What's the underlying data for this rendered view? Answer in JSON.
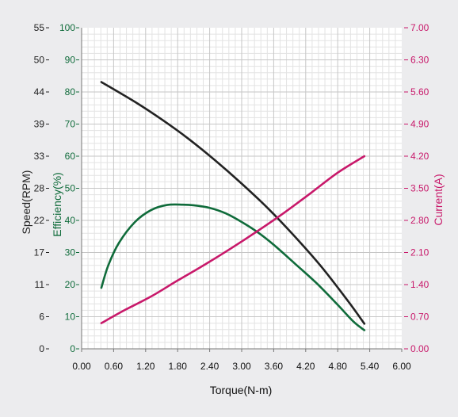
{
  "chart_data": {
    "type": "line",
    "xlabel": "Torque(N-m)",
    "x_ticks": [
      "0.00",
      "0.60",
      "1.20",
      "1.80",
      "2.40",
      "3.00",
      "3.60",
      "4.20",
      "4.80",
      "5.40",
      "6.00"
    ],
    "xlim": [
      0,
      6
    ],
    "grid": true,
    "axes": {
      "speed": {
        "label": "Speed(RPM)",
        "side": "left-outer",
        "color": "#222222",
        "ylim": [
          0,
          55
        ],
        "ticks": [
          "55",
          "50",
          "44",
          "39",
          "33",
          "28",
          "22",
          "17",
          "11",
          "6",
          "0"
        ]
      },
      "efficiency": {
        "label": "Efficiency(%)",
        "side": "left-inner",
        "color": "#0f6b3a",
        "ylim": [
          0,
          100
        ],
        "ticks": [
          "100",
          "90",
          "80",
          "70",
          "60",
          "50",
          "40",
          "30",
          "20",
          "10",
          "0"
        ]
      },
      "current": {
        "label": "Current(A)",
        "side": "right",
        "color": "#c8186a",
        "ylim": [
          0,
          7
        ],
        "ticks": [
          "7.00",
          "6.30",
          "5.60",
          "4.90",
          "4.20",
          "3.50",
          "2.80",
          "2.10",
          "1.40",
          "0.70",
          "0.00"
        ]
      }
    },
    "series": [
      {
        "axis": "speed",
        "color": "#222222",
        "x": [
          0.37,
          1.0,
          1.5,
          2.0,
          2.5,
          3.0,
          3.5,
          4.0,
          4.5,
          5.0,
          5.3
        ],
        "y": [
          45.7,
          42.3,
          39.3,
          36.0,
          32.3,
          28.3,
          24.0,
          19.2,
          14.0,
          8.1,
          4.3
        ]
      },
      {
        "axis": "efficiency",
        "color": "#0f6b3a",
        "x": [
          0.37,
          0.5,
          0.7,
          1.0,
          1.3,
          1.6,
          1.9,
          2.1,
          2.4,
          2.7,
          3.0,
          3.3,
          3.6,
          4.0,
          4.4,
          4.8,
          5.1,
          5.3
        ],
        "y": [
          19,
          26,
          33,
          39.5,
          43.2,
          44.8,
          44.9,
          44.7,
          43.9,
          42.2,
          39.5,
          36.3,
          32.4,
          26.5,
          20.5,
          13.7,
          8.4,
          5.8
        ]
      },
      {
        "axis": "current",
        "color": "#c8186a",
        "x": [
          0.37,
          0.8,
          1.3,
          1.8,
          2.3,
          2.8,
          3.3,
          3.8,
          4.3,
          4.8,
          5.3
        ],
        "y": [
          0.56,
          0.84,
          1.14,
          1.49,
          1.83,
          2.19,
          2.57,
          2.97,
          3.4,
          3.84,
          4.2
        ]
      }
    ]
  }
}
